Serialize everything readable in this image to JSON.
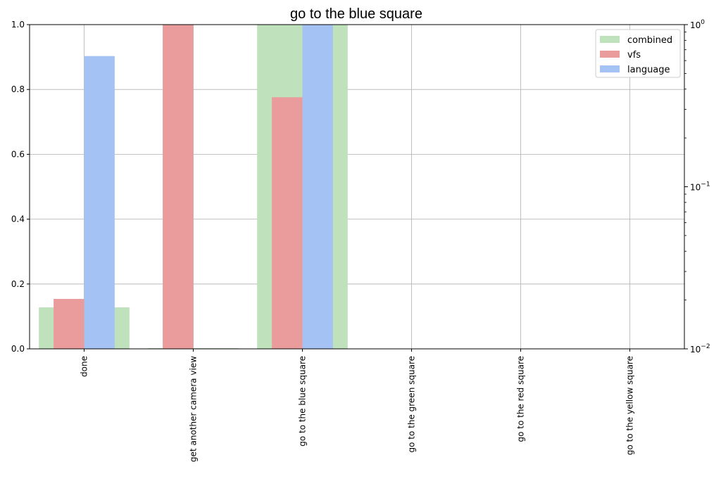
{
  "chart_data": {
    "type": "bar",
    "title": "go to the blue square",
    "xlabel": "",
    "ylabel": "",
    "categories": [
      "done",
      "get another camera view",
      "go to the blue square",
      "go to the green square",
      "go to the red square",
      "go to the yellow square"
    ],
    "series": [
      {
        "name": "combined",
        "values": [
          0.128,
          0.002,
          1.0,
          0.0,
          0.0,
          0.0
        ]
      },
      {
        "name": "vfs",
        "values": [
          0.154,
          1.0,
          0.776,
          0.0,
          0.0,
          0.0
        ]
      },
      {
        "name": "language",
        "values": [
          0.903,
          0.001,
          1.0,
          0.0,
          0.0,
          0.0
        ]
      }
    ],
    "ylim": [
      0,
      1
    ],
    "yticks": [
      "0.0",
      "0.2",
      "0.4",
      "0.6",
      "0.8",
      "1.0"
    ],
    "secondary_axis": {
      "scale": "log",
      "ylim": [
        0.01,
        1
      ],
      "ticks": [
        "10",
        "10"
      ],
      "exponents": [
        "−2",
        "−1",
        "0"
      ]
    },
    "grid": true,
    "legend_position": "top-right",
    "colors": {
      "combined": "#bfe1bb",
      "vfs": "#ea9b9b",
      "language": "#a5c2f4"
    }
  }
}
